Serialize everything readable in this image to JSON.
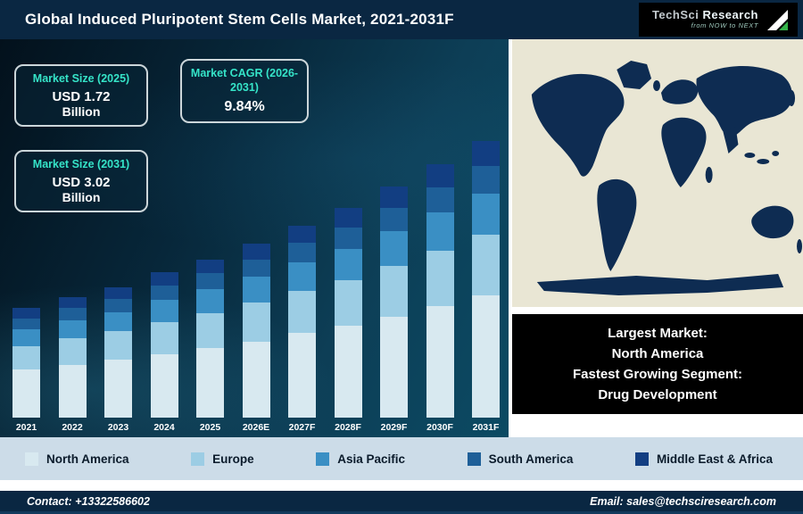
{
  "header": {
    "title": "Global Induced Pluripotent Stem Cells Market, 2021-2031F",
    "logo": {
      "brand_primary": "TechSci ",
      "brand_secondary": "Research",
      "tagline": "from NOW to NEXT"
    }
  },
  "info_boxes": [
    {
      "heading": "Market Size (2025)",
      "value": "USD 1.72",
      "unit": "Billion"
    },
    {
      "heading": "Market CAGR (2026-2031)",
      "value": "9.84%",
      "unit": ""
    },
    {
      "heading": "Market Size (2031)",
      "value": "USD 3.02",
      "unit": "Billion"
    }
  ],
  "chart_data": {
    "type": "bar",
    "stacked": true,
    "title": "Global Induced Pluripotent Stem Cells Market, 2021-2031F",
    "units": "USD Billion",
    "categories": [
      "2021",
      "2022",
      "2023",
      "2024",
      "2025",
      "2026E",
      "2027F",
      "2028F",
      "2029F",
      "2030F",
      "2031F"
    ],
    "series": [
      {
        "name": "North America",
        "color": "#d8e9f0",
        "values": [
          0.52,
          0.57,
          0.63,
          0.69,
          0.76,
          0.83,
          0.92,
          1.0,
          1.1,
          1.21,
          1.33
        ]
      },
      {
        "name": "Europe",
        "color": "#9ccde4",
        "values": [
          0.26,
          0.29,
          0.31,
          0.35,
          0.38,
          0.42,
          0.46,
          0.5,
          0.55,
          0.61,
          0.66
        ]
      },
      {
        "name": "Asia Pacific",
        "color": "#3a8fc4",
        "values": [
          0.18,
          0.2,
          0.21,
          0.24,
          0.26,
          0.28,
          0.31,
          0.34,
          0.38,
          0.41,
          0.45
        ]
      },
      {
        "name": "South America",
        "color": "#1e5f98",
        "values": [
          0.12,
          0.13,
          0.14,
          0.16,
          0.17,
          0.19,
          0.21,
          0.23,
          0.25,
          0.28,
          0.3
        ]
      },
      {
        "name": "Middle East & Africa",
        "color": "#123e82",
        "values": [
          0.11,
          0.12,
          0.13,
          0.14,
          0.15,
          0.17,
          0.19,
          0.21,
          0.23,
          0.25,
          0.27
        ]
      }
    ],
    "totals": [
      1.18,
      1.3,
      1.43,
      1.57,
      1.72,
      1.89,
      2.08,
      2.28,
      2.5,
      2.75,
      3.02
    ],
    "ylim": [
      0,
      3.2
    ],
    "legend_position": "bottom",
    "grid": false
  },
  "market_box": {
    "line1": "Largest Market:",
    "line2": "North America",
    "line3": "Fastest Growing Segment:",
    "line4": "Drug Development"
  },
  "footer": {
    "contact": "Contact: +13322586602",
    "email": "Email: sales@techsciresearch.com"
  },
  "colors": {
    "navy_bar": "#0a2742",
    "teal_heading": "#35e4c8",
    "legend_band": "#ccdce8",
    "map_land": "#0e2c52",
    "map_ocean": "#e9e6d4"
  }
}
